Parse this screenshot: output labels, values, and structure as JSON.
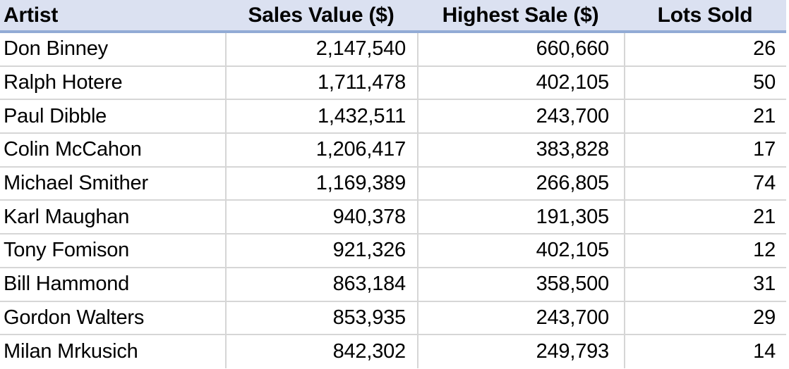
{
  "table": {
    "headers": [
      "Artist",
      "Sales Value ($)",
      "Highest Sale ($)",
      "Lots Sold"
    ],
    "rows": [
      [
        "Don Binney",
        "2,147,540",
        "660,660",
        "26"
      ],
      [
        "Ralph Hotere",
        "1,711,478",
        "402,105",
        "50"
      ],
      [
        "Paul Dibble",
        "1,432,511",
        "243,700",
        "21"
      ],
      [
        "Colin McCahon",
        "1,206,417",
        "383,828",
        "17"
      ],
      [
        "Michael Smither",
        "1,169,389",
        "266,805",
        "74"
      ],
      [
        "Karl Maughan",
        "940,378",
        "191,305",
        "21"
      ],
      [
        "Tony Fomison",
        "921,326",
        "402,105",
        "12"
      ],
      [
        "Bill Hammond",
        "863,184",
        "358,500",
        "31"
      ],
      [
        "Gordon Walters",
        "853,935",
        "243,700",
        "29"
      ],
      [
        "Milan Mrkusich",
        "842,302",
        "249,793",
        "14"
      ]
    ]
  },
  "colors": {
    "header_background": "#dbe1f1",
    "header_underline": "#92abd5",
    "grid_line": "#d6d6d6",
    "text": "#000000"
  },
  "chart_data": {
    "type": "table",
    "columns": [
      "Artist",
      "Sales Value ($)",
      "Highest Sale ($)",
      "Lots Sold"
    ],
    "rows": [
      [
        "Don Binney",
        2147540,
        660660,
        26
      ],
      [
        "Ralph Hotere",
        1711478,
        402105,
        50
      ],
      [
        "Paul Dibble",
        1432511,
        243700,
        21
      ],
      [
        "Colin McCahon",
        1206417,
        383828,
        17
      ],
      [
        "Michael Smither",
        1169389,
        266805,
        74
      ],
      [
        "Karl Maughan",
        940378,
        191305,
        21
      ],
      [
        "Tony Fomison",
        921326,
        402105,
        12
      ],
      [
        "Bill Hammond",
        863184,
        358500,
        31
      ],
      [
        "Gordon Walters",
        853935,
        243700,
        29
      ],
      [
        "Milan Mrkusich",
        842302,
        249793,
        14
      ]
    ]
  }
}
